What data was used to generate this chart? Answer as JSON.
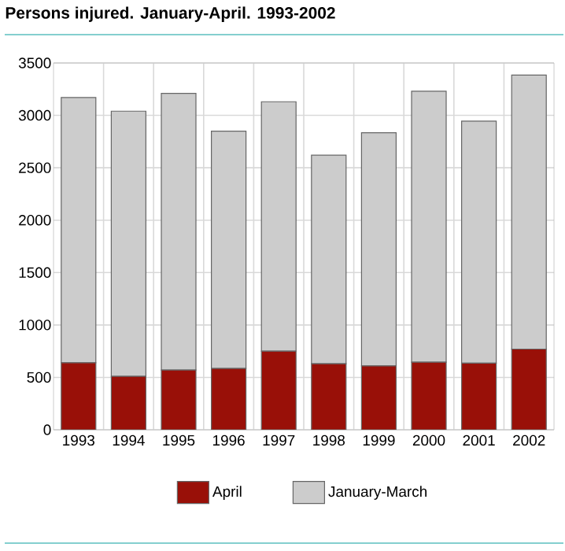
{
  "chart_data": {
    "type": "bar",
    "title": "Persons injured. January-April. 1993-2002",
    "stacked": true,
    "categories": [
      "1993",
      "1994",
      "1995",
      "1996",
      "1997",
      "1998",
      "1999",
      "2000",
      "2001",
      "2002"
    ],
    "series": [
      {
        "name": "April",
        "color": "#991008",
        "values": [
          640,
          510,
          570,
          585,
          750,
          630,
          610,
          645,
          635,
          770
        ]
      },
      {
        "name": "January-March",
        "color": "#cccccc",
        "values": [
          2530,
          2530,
          2640,
          2265,
          2380,
          1990,
          2225,
          2585,
          2310,
          2615
        ]
      }
    ],
    "ylim": [
      0,
      3500
    ],
    "yticks": [
      0,
      500,
      1000,
      1500,
      2000,
      2500,
      3000,
      3500
    ],
    "grid": true,
    "legend": "bottom"
  }
}
